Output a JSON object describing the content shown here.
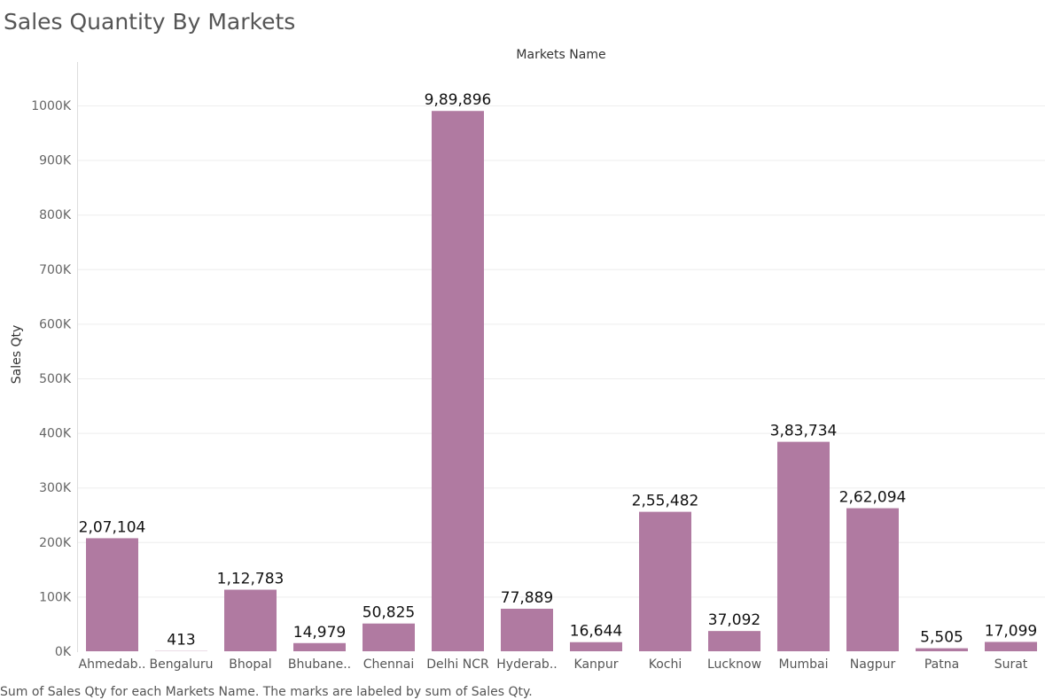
{
  "chart_data": {
    "type": "bar",
    "title": "Sales Quantity By Markets",
    "column_header": "Markets Name",
    "ylabel": "Sales Qty",
    "xlabel": "",
    "caption": "Sum of Sales Qty for each Markets Name.  The marks are labeled by sum of Sales Qty.",
    "categories": [
      "Ahmedab..",
      "Bengaluru",
      "Bhopal",
      "Bhubane..",
      "Chennai",
      "Delhi NCR",
      "Hyderab..",
      "Kanpur",
      "Kochi",
      "Lucknow",
      "Mumbai",
      "Nagpur",
      "Patna",
      "Surat"
    ],
    "values": [
      207104,
      413,
      112783,
      14979,
      50825,
      989896,
      77889,
      16644,
      255482,
      37092,
      383734,
      262094,
      5505,
      17099
    ],
    "value_labels": [
      "2,07,104",
      "413",
      "1,12,783",
      "14,979",
      "50,825",
      "9,89,896",
      "77,889",
      "16,644",
      "2,55,482",
      "37,092",
      "3,83,734",
      "2,62,094",
      "5,505",
      "17,099"
    ],
    "ylim": [
      0,
      1000000
    ],
    "yticks": [
      0,
      100000,
      200000,
      300000,
      400000,
      500000,
      600000,
      700000,
      800000,
      900000,
      1000000
    ],
    "ytick_labels": [
      "0K",
      "100K",
      "200K",
      "300K",
      "400K",
      "500K",
      "600K",
      "700K",
      "800K",
      "900K",
      "1000K"
    ],
    "grid": true,
    "bar_color": "#b07aa1"
  }
}
